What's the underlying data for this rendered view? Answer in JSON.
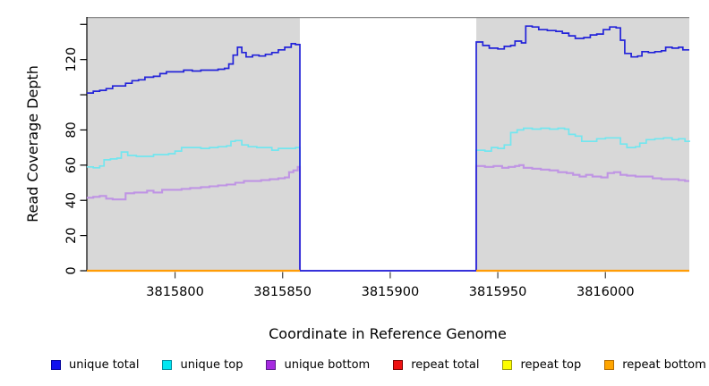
{
  "chart_data": {
    "type": "line",
    "subtype": "step-after-coverage-plot",
    "title": "",
    "xlabel": "Coordinate in Reference Genome",
    "ylabel": "Read Coverage Depth",
    "x_range": [
      3815759,
      3816039
    ],
    "y_range": [
      0,
      144.2
    ],
    "x_ticks": [
      "3815800",
      "3815850",
      "3815900",
      "3815950",
      "3816000"
    ],
    "x_tick_values": [
      3815800,
      3815850,
      3815900,
      3815950,
      3816000
    ],
    "y_tick_values": [
      0,
      20,
      40,
      60,
      80,
      100,
      120,
      140
    ],
    "y_tick_labels": [
      "0",
      "20",
      "40",
      "60",
      "80",
      "",
      "120",
      ""
    ],
    "grid": "off",
    "legend_position": "bottom",
    "shaded_regions": [
      [
        3815759,
        3815858
      ],
      [
        3815940,
        3816039
      ]
    ],
    "masked_region": [
      3815858,
      3815940
    ],
    "colors": {
      "shade_fill": "#d8d8d8",
      "shade_top_edge": "#8a8a8a",
      "axis": "#000000",
      "background": "#ffffff"
    },
    "series": [
      {
        "name": "unique total",
        "line_color": "#2323d9",
        "line_width": 1.7,
        "swatch_fill": "#1010ee",
        "swatch_border": "#000099",
        "segments": [
          [
            [
              3815759,
              101
            ],
            [
              3815762,
              102
            ],
            [
              3815765,
              102.5
            ],
            [
              3815768,
              103.5
            ],
            [
              3815771,
              105
            ],
            [
              3815774,
              105
            ],
            [
              3815777,
              106.5
            ],
            [
              3815780,
              108
            ],
            [
              3815783,
              108.5
            ],
            [
              3815786,
              110
            ],
            [
              3815790,
              110.5
            ],
            [
              3815793,
              112
            ],
            [
              3815796,
              113
            ],
            [
              3815800,
              113
            ],
            [
              3815804,
              114
            ],
            [
              3815808,
              113.5
            ],
            [
              3815812,
              114
            ],
            [
              3815816,
              114
            ],
            [
              3815820,
              114.5
            ],
            [
              3815823,
              115
            ],
            [
              3815825,
              117.5
            ],
            [
              3815827,
              122.5
            ],
            [
              3815829,
              127
            ],
            [
              3815831,
              124
            ],
            [
              3815833,
              121.5
            ],
            [
              3815836,
              122.5
            ],
            [
              3815839,
              122
            ],
            [
              3815842,
              123
            ],
            [
              3815845,
              124
            ],
            [
              3815848,
              125.5
            ],
            [
              3815851,
              127
            ],
            [
              3815854,
              129
            ],
            [
              3815856,
              128.5
            ],
            [
              3815858,
              0
            ],
            [
              3815938,
              0
            ],
            [
              3815940,
              130
            ],
            [
              3815943,
              128
            ],
            [
              3815946,
              126.5
            ],
            [
              3815950,
              126
            ],
            [
              3815953,
              127.5
            ],
            [
              3815956,
              128
            ],
            [
              3815958,
              130.5
            ],
            [
              3815961,
              129.5
            ],
            [
              3815963,
              139
            ],
            [
              3815966,
              138.5
            ],
            [
              3815969,
              137
            ],
            [
              3815973,
              136.5
            ],
            [
              3815977,
              136
            ],
            [
              3815980,
              135
            ],
            [
              3815983,
              133.5
            ],
            [
              3815986,
              132
            ],
            [
              3815990,
              132.5
            ],
            [
              3815993,
              134
            ],
            [
              3815996,
              134.5
            ],
            [
              3815999,
              137
            ],
            [
              3816002,
              138.5
            ],
            [
              3816005,
              138
            ],
            [
              3816007,
              131
            ],
            [
              3816009,
              123.5
            ],
            [
              3816012,
              121.5
            ],
            [
              3816015,
              122
            ],
            [
              3816017,
              124.5
            ],
            [
              3816020,
              124
            ],
            [
              3816023,
              124.5
            ],
            [
              3816026,
              125
            ],
            [
              3816028,
              127
            ],
            [
              3816031,
              126.5
            ],
            [
              3816034,
              127
            ],
            [
              3816036,
              125.5
            ],
            [
              3816039,
              125.5
            ]
          ]
        ]
      },
      {
        "name": "unique top",
        "line_color": "#72e6ef",
        "line_width": 1.7,
        "swatch_fill": "#00e6f2",
        "swatch_border": "#008b9e",
        "segments": [
          [
            [
              3815759,
              59
            ],
            [
              3815762,
              58.5
            ],
            [
              3815765,
              59.5
            ],
            [
              3815767,
              63
            ],
            [
              3815770,
              63.5
            ],
            [
              3815773,
              64
            ],
            [
              3815775,
              67.5
            ],
            [
              3815778,
              65.5
            ],
            [
              3815782,
              65
            ],
            [
              3815787,
              65
            ],
            [
              3815790,
              66
            ],
            [
              3815794,
              66
            ],
            [
              3815797,
              66.5
            ],
            [
              3815800,
              68
            ],
            [
              3815803,
              70
            ],
            [
              3815808,
              70
            ],
            [
              3815812,
              69.5
            ],
            [
              3815816,
              70
            ],
            [
              3815820,
              70.5
            ],
            [
              3815824,
              71
            ],
            [
              3815826,
              73.5
            ],
            [
              3815828,
              74
            ],
            [
              3815831,
              71.5
            ],
            [
              3815834,
              70.5
            ],
            [
              3815838,
              70
            ],
            [
              3815843,
              70
            ],
            [
              3815845,
              68.5
            ],
            [
              3815848,
              69.5
            ],
            [
              3815852,
              69.5
            ],
            [
              3815856,
              70
            ],
            [
              3815858,
              0
            ],
            [
              3815938,
              0
            ],
            [
              3815940,
              68.5
            ],
            [
              3815944,
              68
            ],
            [
              3815947,
              70
            ],
            [
              3815950,
              69.5
            ],
            [
              3815953,
              71.5
            ],
            [
              3815956,
              78.5
            ],
            [
              3815959,
              80
            ],
            [
              3815962,
              81
            ],
            [
              3815966,
              80.5
            ],
            [
              3815970,
              81
            ],
            [
              3815974,
              80.5
            ],
            [
              3815978,
              81
            ],
            [
              3815981,
              80.5
            ],
            [
              3815983,
              77.5
            ],
            [
              3815986,
              76.5
            ],
            [
              3815989,
              73.5
            ],
            [
              3815993,
              73.5
            ],
            [
              3815996,
              75
            ],
            [
              3816000,
              75.5
            ],
            [
              3816004,
              75.5
            ],
            [
              3816007,
              72
            ],
            [
              3816010,
              70
            ],
            [
              3816014,
              70.5
            ],
            [
              3816016,
              72.5
            ],
            [
              3816019,
              74.5
            ],
            [
              3816023,
              75
            ],
            [
              3816027,
              75.5
            ],
            [
              3816031,
              74.5
            ],
            [
              3816034,
              75
            ],
            [
              3816037,
              73.5
            ],
            [
              3816039,
              74
            ]
          ]
        ]
      },
      {
        "name": "unique bottom",
        "line_color": "#bf94e4",
        "line_width": 2.1,
        "swatch_fill": "#a62ae0",
        "swatch_border": "#5a1a8b",
        "segments": [
          [
            [
              3815759,
              41.5
            ],
            [
              3815762,
              42
            ],
            [
              3815765,
              42.5
            ],
            [
              3815768,
              41
            ],
            [
              3815771,
              40.5
            ],
            [
              3815774,
              40.5
            ],
            [
              3815777,
              44
            ],
            [
              3815781,
              44.5
            ],
            [
              3815785,
              44.5
            ],
            [
              3815787,
              45.5
            ],
            [
              3815790,
              44.5
            ],
            [
              3815794,
              46
            ],
            [
              3815799,
              46
            ],
            [
              3815803,
              46.5
            ],
            [
              3815807,
              47
            ],
            [
              3815812,
              47.5
            ],
            [
              3815816,
              48
            ],
            [
              3815820,
              48.5
            ],
            [
              3815824,
              49
            ],
            [
              3815828,
              50
            ],
            [
              3815832,
              51
            ],
            [
              3815836,
              51
            ],
            [
              3815840,
              51.5
            ],
            [
              3815844,
              52
            ],
            [
              3815848,
              52.5
            ],
            [
              3815851,
              53
            ],
            [
              3815853,
              56
            ],
            [
              3815855,
              57
            ],
            [
              3815857,
              59
            ],
            [
              3815858,
              0
            ],
            [
              3815938,
              0
            ],
            [
              3815940,
              59.5
            ],
            [
              3815944,
              59
            ],
            [
              3815948,
              59.5
            ],
            [
              3815952,
              58.5
            ],
            [
              3815955,
              59
            ],
            [
              3815958,
              59.5
            ],
            [
              3815960,
              60
            ],
            [
              3815962,
              58.5
            ],
            [
              3815966,
              58
            ],
            [
              3815970,
              57.5
            ],
            [
              3815974,
              57
            ],
            [
              3815978,
              56
            ],
            [
              3815982,
              55.5
            ],
            [
              3815985,
              54.5
            ],
            [
              3815988,
              53.5
            ],
            [
              3815991,
              54.5
            ],
            [
              3815994,
              53.5
            ],
            [
              3815998,
              53
            ],
            [
              3816001,
              55.5
            ],
            [
              3816004,
              56
            ],
            [
              3816007,
              54.5
            ],
            [
              3816010,
              54
            ],
            [
              3816014,
              53.5
            ],
            [
              3816018,
              53.5
            ],
            [
              3816022,
              52.5
            ],
            [
              3816026,
              52
            ],
            [
              3816030,
              52
            ],
            [
              3816034,
              51.5
            ],
            [
              3816037,
              51
            ],
            [
              3816039,
              51
            ]
          ]
        ]
      },
      {
        "name": "repeat total",
        "line_color": "#cc2222",
        "line_width": 1.7,
        "swatch_fill": "#ee1111",
        "swatch_border": "#7a0000",
        "segments": [
          [
            [
              3815759,
              0
            ],
            [
              3815858,
              0
            ]
          ],
          [
            [
              3815940,
              0
            ],
            [
              3816039,
              0
            ]
          ]
        ]
      },
      {
        "name": "repeat top",
        "line_color": "#f0f000",
        "line_width": 1.7,
        "swatch_fill": "#fdfd00",
        "swatch_border": "#99990f",
        "segments": [
          [
            [
              3815759,
              0
            ],
            [
              3815858,
              0
            ]
          ],
          [
            [
              3815940,
              0
            ],
            [
              3816039,
              0
            ]
          ]
        ]
      },
      {
        "name": "repeat bottom",
        "line_color": "#ff9c06",
        "line_width": 2.2,
        "swatch_fill": "#ffa500",
        "swatch_border": "#b36b00",
        "segments": [
          [
            [
              3815759,
              0
            ],
            [
              3815858,
              0
            ]
          ],
          [
            [
              3815940,
              0
            ],
            [
              3816039,
              0
            ]
          ]
        ]
      }
    ]
  },
  "legend": {
    "items": [
      "unique total",
      "unique top",
      "unique bottom",
      "repeat total",
      "repeat top",
      "repeat bottom"
    ]
  }
}
